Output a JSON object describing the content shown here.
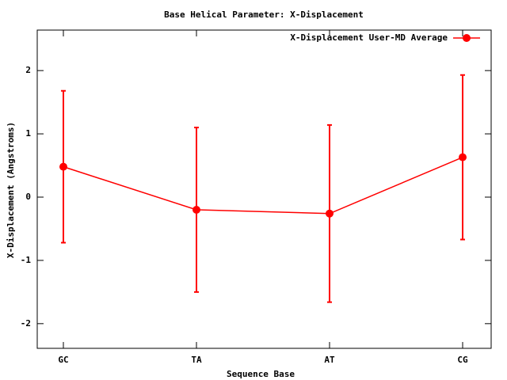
{
  "chart_data": {
    "type": "line",
    "title": "Base  Helical Parameter: X-Displacement",
    "xlabel": "Sequence Base",
    "ylabel": "X-Displacement (Angstroms)",
    "categories": [
      "GC",
      "TA",
      "AT",
      "CG"
    ],
    "series": [
      {
        "name": "X-Displacement User-MD Average",
        "color": "#ff0000",
        "values": [
          0.48,
          -0.2,
          -0.26,
          0.63
        ],
        "errors": [
          1.2,
          1.3,
          1.4,
          1.3
        ]
      }
    ],
    "ylim": [
      -2.39,
      2.64
    ],
    "yticks": [
      -2,
      -1,
      0,
      1,
      2
    ],
    "legend": "upper right"
  }
}
